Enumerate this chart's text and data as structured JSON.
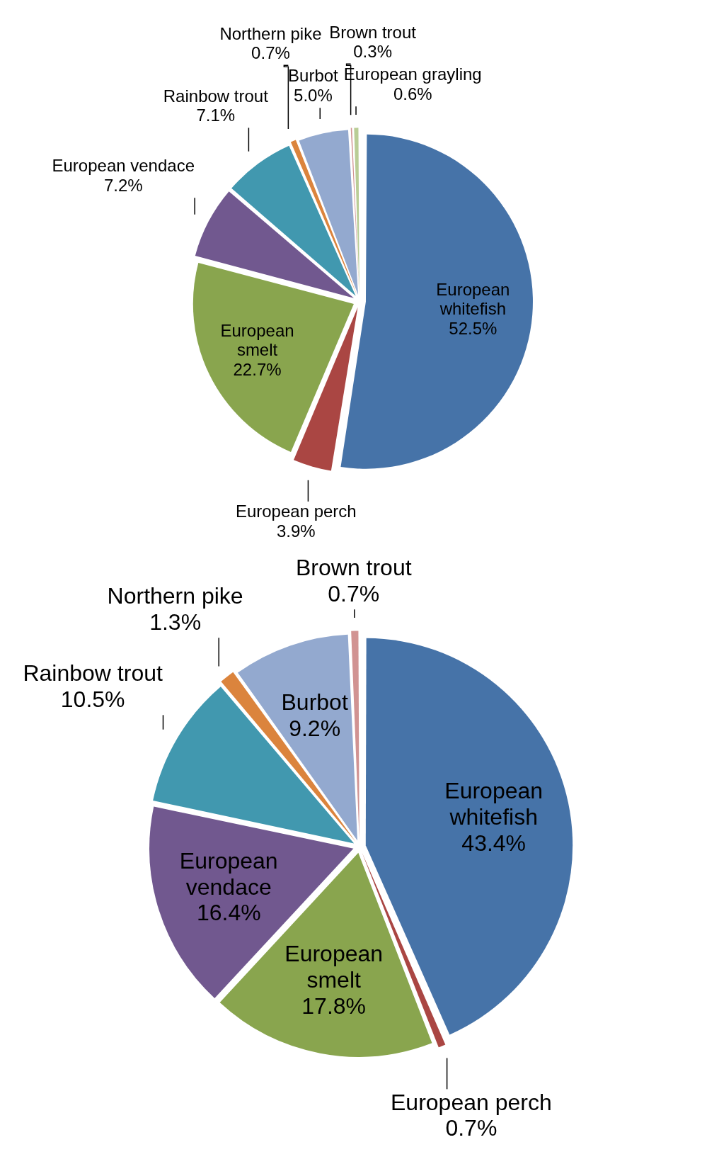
{
  "chart_data": [
    {
      "type": "pie",
      "categories": [
        "European whitefish",
        "European perch",
        "European smelt",
        "European vendace",
        "Rainbow trout",
        "Northern pike",
        "Burbot",
        "Brown trout",
        "European grayling"
      ],
      "values": [
        52.5,
        3.9,
        22.7,
        7.2,
        7.1,
        0.7,
        5.0,
        0.3,
        0.6
      ],
      "value_labels": [
        "52.5%",
        "3.9%",
        "22.7%",
        "7.2%",
        "7.1%",
        "0.7%",
        "5.0%",
        "0.3%",
        "0.6%"
      ],
      "colors": [
        "#4673a8",
        "#aa4643",
        "#89a54e",
        "#71588f",
        "#4198af",
        "#db843d",
        "#93a9cf",
        "#d19392",
        "#b9cd96"
      ],
      "legend": false
    },
    {
      "type": "pie",
      "categories": [
        "European whitefish",
        "European perch",
        "European smelt",
        "European vendace",
        "Rainbow trout",
        "Northern pike",
        "Burbot",
        "Brown trout"
      ],
      "values": [
        43.4,
        0.7,
        17.8,
        16.4,
        10.5,
        1.3,
        9.2,
        0.7
      ],
      "value_labels": [
        "43.4%",
        "0.7%",
        "17.8%",
        "16.4%",
        "10.5%",
        "1.3%",
        "9.2%",
        "0.7%"
      ],
      "colors": [
        "#4673a8",
        "#aa4643",
        "#89a54e",
        "#71588f",
        "#4198af",
        "#db843d",
        "#93a9cf",
        "#d19392"
      ],
      "legend": false
    }
  ]
}
